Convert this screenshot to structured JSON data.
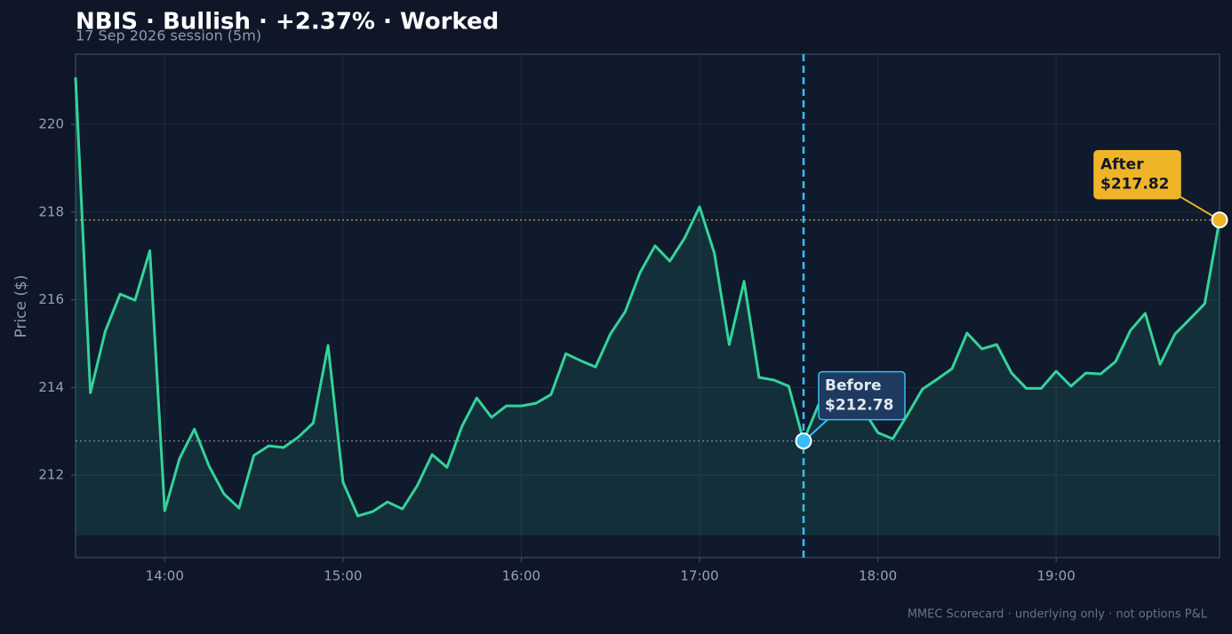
{
  "chart_data": {
    "type": "line",
    "title": "NBIS · Bullish · +2.37% · Worked",
    "subtitle": "17 Sep 2026 session (5m)",
    "y_label": "Price ($)",
    "footer": "MMEC Scorecard · underlying only · not options P&L",
    "x": [
      "13:30",
      "13:35",
      "13:40",
      "13:45",
      "13:50",
      "13:55",
      "14:00",
      "14:05",
      "14:10",
      "14:15",
      "14:20",
      "14:25",
      "14:30",
      "14:35",
      "14:40",
      "14:45",
      "14:50",
      "14:55",
      "15:00",
      "15:05",
      "15:10",
      "15:15",
      "15:20",
      "15:25",
      "15:30",
      "15:35",
      "15:40",
      "15:45",
      "15:50",
      "15:55",
      "16:00",
      "16:05",
      "16:10",
      "16:15",
      "16:20",
      "16:25",
      "16:30",
      "16:35",
      "16:40",
      "16:45",
      "16:50",
      "16:55",
      "17:00",
      "17:05",
      "17:10",
      "17:15",
      "17:20",
      "17:25",
      "17:30",
      "17:35",
      "17:40",
      "17:45",
      "17:50",
      "17:55",
      "18:00",
      "18:05",
      "18:10",
      "18:15",
      "18:20",
      "18:25",
      "18:30",
      "18:35",
      "18:40",
      "18:45",
      "18:50",
      "18:55",
      "19:00",
      "19:05",
      "19:10",
      "19:15",
      "19:20",
      "19:25",
      "19:30",
      "19:35",
      "19:40",
      "19:45",
      "19:50",
      "19:55"
    ],
    "series": [
      {
        "name": "NBIS",
        "color": "#34d399",
        "values": [
          221.07,
          213.88,
          215.28,
          216.13,
          215.99,
          217.12,
          211.19,
          212.38,
          213.05,
          212.2,
          211.57,
          211.25,
          212.45,
          212.67,
          212.63,
          212.87,
          213.19,
          214.96,
          211.84,
          211.07,
          211.17,
          211.39,
          211.23,
          211.76,
          212.47,
          212.18,
          213.11,
          213.76,
          213.32,
          213.58,
          213.58,
          213.64,
          213.84,
          214.77,
          214.61,
          214.47,
          215.22,
          215.73,
          216.62,
          217.23,
          216.88,
          217.41,
          218.12,
          217.06,
          214.98,
          216.42,
          214.23,
          214.17,
          214.03,
          212.78,
          213.6,
          213.9,
          213.7,
          213.5,
          212.97,
          212.83,
          213.38,
          213.96,
          214.19,
          214.43,
          215.24,
          214.88,
          214.98,
          214.33,
          213.98,
          213.98,
          214.37,
          214.03,
          214.33,
          214.31,
          214.59,
          215.3,
          215.69,
          214.53,
          215.22,
          215.56,
          215.91,
          217.82
        ]
      }
    ],
    "xlim": [
      "13:30",
      "19:55"
    ],
    "xticks": [
      "14:00",
      "15:00",
      "16:00",
      "17:00",
      "18:00",
      "19:00"
    ],
    "ylim": [
      210.12,
      221.6
    ],
    "yticks": [
      212,
      214,
      216,
      218,
      220
    ],
    "grid": true,
    "annotations": [
      {
        "x": "17:35",
        "value": 212.78,
        "title": "Before",
        "label": "$212.78",
        "color": "#38bdf8"
      },
      {
        "x": "19:55",
        "value": 217.82,
        "title": "After",
        "label": "$217.82",
        "color": "#f0b429"
      }
    ]
  }
}
